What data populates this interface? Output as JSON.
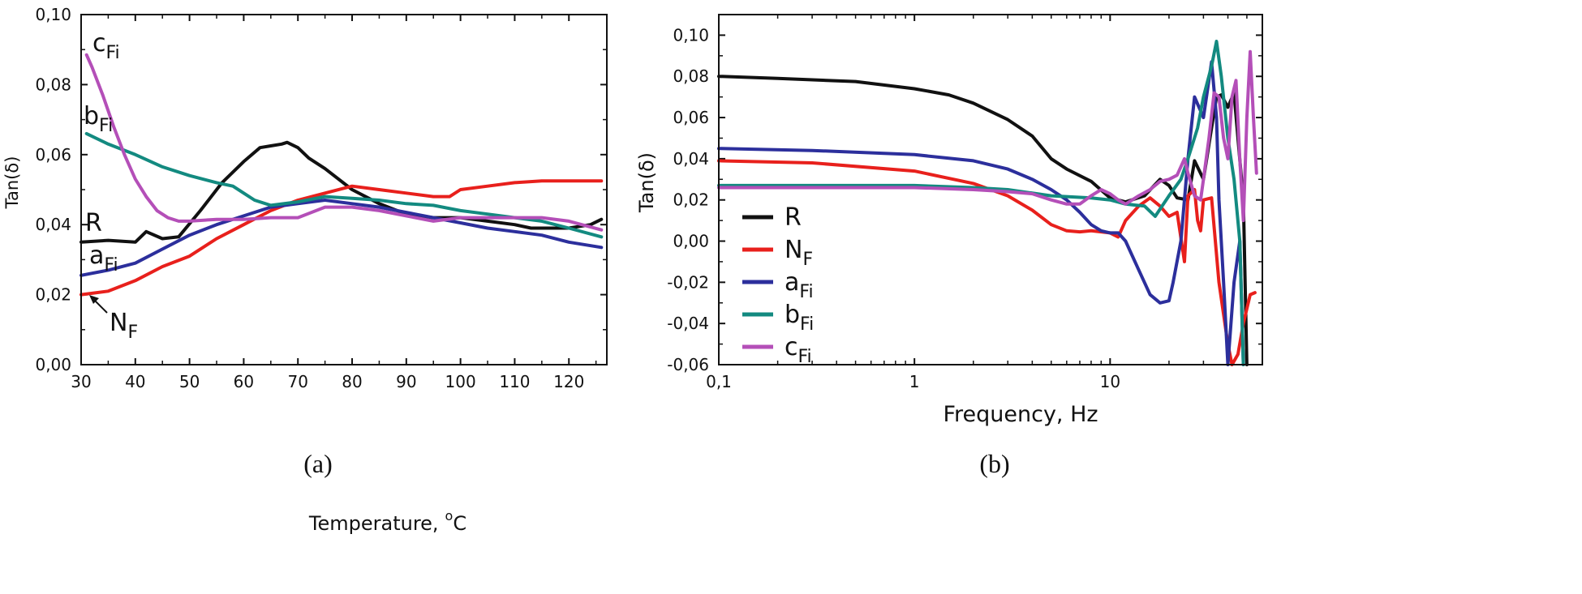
{
  "chart_data": [
    {
      "type": "line",
      "panel": "a",
      "caption": "(a)",
      "xlabel": "Temperature,",
      "xlabel_unit": "C",
      "xlabel_unit_sup": "o",
      "ylabel": "Tan(δ)",
      "xlim": [
        30,
        127
      ],
      "ylim": [
        0,
        0.1
      ],
      "xticks": [
        30,
        40,
        50,
        60,
        70,
        80,
        90,
        100,
        110,
        120
      ],
      "xtick_labels": [
        "30",
        "40",
        "50",
        "60",
        "70",
        "80",
        "90",
        "100",
        "110",
        "120"
      ],
      "yticks": [
        0,
        0.02,
        0.04,
        0.06,
        0.08,
        0.1
      ],
      "ytick_labels": [
        "0,00",
        "0,02",
        "0,04",
        "0,06",
        "0,08",
        "0,10"
      ],
      "series": [
        {
          "name": "R",
          "color": "#111111",
          "x": [
            30,
            35,
            40,
            42,
            45,
            48,
            52,
            56,
            60,
            63,
            65,
            67,
            68,
            70,
            72,
            75,
            80,
            85,
            90,
            95,
            100,
            105,
            110,
            113,
            115,
            120,
            124,
            126
          ],
          "y": [
            0.035,
            0.0355,
            0.035,
            0.038,
            0.036,
            0.0365,
            0.044,
            0.052,
            0.058,
            0.062,
            0.0625,
            0.063,
            0.0635,
            0.062,
            0.059,
            0.056,
            0.05,
            0.046,
            0.043,
            0.042,
            0.042,
            0.041,
            0.04,
            0.039,
            0.039,
            0.039,
            0.04,
            0.0415
          ]
        },
        {
          "name": "NF",
          "color": "#e8201c",
          "x": [
            30,
            35,
            40,
            45,
            50,
            55,
            60,
            65,
            70,
            75,
            80,
            85,
            90,
            95,
            98,
            100,
            105,
            110,
            115,
            120,
            126
          ],
          "y": [
            0.02,
            0.021,
            0.024,
            0.028,
            0.031,
            0.036,
            0.04,
            0.044,
            0.047,
            0.049,
            0.051,
            0.05,
            0.049,
            0.048,
            0.048,
            0.05,
            0.051,
            0.052,
            0.0525,
            0.0525,
            0.0525
          ]
        },
        {
          "name": "aFi",
          "color": "#2c2f9c",
          "x": [
            30,
            35,
            40,
            45,
            50,
            55,
            60,
            65,
            70,
            75,
            80,
            85,
            90,
            95,
            100,
            105,
            110,
            115,
            120,
            126
          ],
          "y": [
            0.0255,
            0.027,
            0.029,
            0.033,
            0.037,
            0.04,
            0.0425,
            0.045,
            0.046,
            0.047,
            0.046,
            0.045,
            0.0435,
            0.042,
            0.0405,
            0.039,
            0.038,
            0.037,
            0.035,
            0.0335
          ]
        },
        {
          "name": "bFi",
          "color": "#138a80",
          "x": [
            31,
            35,
            40,
            45,
            50,
            55,
            58,
            60,
            62,
            65,
            70,
            75,
            80,
            85,
            90,
            95,
            100,
            105,
            110,
            115,
            120,
            126
          ],
          "y": [
            0.066,
            0.063,
            0.06,
            0.0565,
            0.054,
            0.052,
            0.051,
            0.049,
            0.047,
            0.0455,
            0.0465,
            0.048,
            0.0475,
            0.047,
            0.046,
            0.0455,
            0.044,
            0.043,
            0.042,
            0.041,
            0.039,
            0.0365
          ]
        },
        {
          "name": "cFi",
          "color": "#b44fb8",
          "x": [
            31,
            32,
            34,
            36,
            38,
            40,
            42,
            44,
            46,
            48,
            50,
            55,
            60,
            65,
            70,
            75,
            80,
            85,
            90,
            95,
            100,
            105,
            110,
            115,
            120,
            126
          ],
          "y": [
            0.0885,
            0.085,
            0.077,
            0.068,
            0.06,
            0.053,
            0.048,
            0.044,
            0.042,
            0.041,
            0.041,
            0.0415,
            0.0415,
            0.042,
            0.042,
            0.045,
            0.045,
            0.044,
            0.0425,
            0.041,
            0.042,
            0.042,
            0.042,
            0.042,
            0.041,
            0.0385
          ]
        }
      ],
      "annotations": [
        {
          "series": "cFi",
          "base": "c",
          "sub": "Fi"
        },
        {
          "series": "bFi",
          "base": "b",
          "sub": "Fi"
        },
        {
          "series": "R",
          "base": "R",
          "sub": ""
        },
        {
          "series": "aFi",
          "base": "a",
          "sub": "Fi"
        },
        {
          "series": "NF",
          "base": "N",
          "sub": "F"
        }
      ]
    },
    {
      "type": "line",
      "panel": "b",
      "caption": "(b)",
      "xlabel": "Frequency, Hz",
      "ylabel": "Tan(δ)",
      "xscale": "log",
      "xlim": [
        0.1,
        60
      ],
      "ylim": [
        -0.06,
        0.11
      ],
      "xticks": [
        0.1,
        1,
        10
      ],
      "xtick_labels": [
        "0,1",
        "1",
        "10"
      ],
      "yticks": [
        -0.06,
        -0.04,
        -0.02,
        0,
        0.02,
        0.04,
        0.06,
        0.08,
        0.1
      ],
      "ytick_labels": [
        "-0,06",
        "-0,04",
        "-0,02",
        "0,00",
        "0,02",
        "0,04",
        "0,06",
        "0,08",
        "0,10"
      ],
      "legend_position": "bottom-left",
      "series": [
        {
          "name": "R",
          "color": "#111111",
          "legend_base": "R",
          "legend_sub": "",
          "x": [
            0.1,
            0.2,
            0.5,
            1,
            1.5,
            2,
            3,
            4,
            5,
            6,
            8,
            10,
            12,
            15,
            18,
            20,
            22,
            25,
            27,
            30,
            33,
            35,
            37,
            40,
            43,
            45,
            48,
            50
          ],
          "y": [
            0.08,
            0.079,
            0.0775,
            0.074,
            0.071,
            0.067,
            0.059,
            0.051,
            0.04,
            0.035,
            0.029,
            0.021,
            0.019,
            0.022,
            0.03,
            0.027,
            0.021,
            0.02,
            0.039,
            0.03,
            0.055,
            0.07,
            0.071,
            0.065,
            0.072,
            0.05,
            0.02,
            -0.06
          ]
        },
        {
          "name": "NF",
          "color": "#e8201c",
          "legend_base": "N",
          "legend_sub": "F",
          "x": [
            0.1,
            0.3,
            1,
            2,
            3,
            4,
            5,
            6,
            7,
            8,
            10,
            11,
            12,
            14,
            16,
            18,
            20,
            22,
            24,
            25,
            27,
            28,
            29,
            30,
            33,
            36,
            40,
            42,
            45,
            48,
            52,
            55
          ],
          "y": [
            0.039,
            0.038,
            0.034,
            0.028,
            0.022,
            0.015,
            0.008,
            0.005,
            0.0045,
            0.005,
            0.004,
            0.002,
            0.01,
            0.017,
            0.021,
            0.017,
            0.012,
            0.014,
            -0.01,
            0.022,
            0.025,
            0.01,
            0.005,
            0.02,
            0.021,
            -0.02,
            -0.05,
            -0.06,
            -0.055,
            -0.04,
            -0.026,
            -0.025
          ]
        },
        {
          "name": "aFi",
          "color": "#2c2f9c",
          "legend_base": "a",
          "legend_sub": "Fi",
          "x": [
            0.1,
            0.3,
            1,
            2,
            3,
            4,
            5,
            6,
            7,
            8,
            9,
            10,
            11,
            12,
            14,
            16,
            18,
            20,
            21,
            23,
            25,
            27,
            30,
            33,
            35,
            36,
            38,
            40,
            43,
            46,
            48
          ],
          "y": [
            0.045,
            0.044,
            0.042,
            0.039,
            0.035,
            0.03,
            0.025,
            0.02,
            0.014,
            0.008,
            0.005,
            0.004,
            0.004,
            0.0,
            -0.014,
            -0.026,
            -0.03,
            -0.029,
            -0.02,
            0.0,
            0.04,
            0.07,
            0.06,
            0.087,
            0.06,
            0.02,
            -0.02,
            -0.06,
            -0.02,
            0.0,
            -0.06
          ]
        },
        {
          "name": "bFi",
          "color": "#138a80",
          "legend_base": "b",
          "legend_sub": "Fi",
          "x": [
            0.1,
            0.5,
            1,
            2,
            3,
            5,
            8,
            10,
            12,
            15,
            17,
            20,
            23,
            25,
            28,
            30,
            33,
            35,
            37,
            40,
            43,
            46,
            48
          ],
          "y": [
            0.027,
            0.027,
            0.027,
            0.026,
            0.025,
            0.022,
            0.021,
            0.02,
            0.018,
            0.017,
            0.012,
            0.022,
            0.03,
            0.04,
            0.055,
            0.07,
            0.085,
            0.097,
            0.08,
            0.05,
            0.03,
            0.0,
            -0.06
          ]
        },
        {
          "name": "cFi",
          "color": "#b44fb8",
          "legend_base": "c",
          "legend_sub": "Fi",
          "x": [
            0.1,
            0.5,
            1,
            2,
            3,
            4,
            5,
            6,
            7,
            8,
            9,
            10,
            11,
            12,
            14,
            16,
            18,
            20,
            22,
            24,
            25,
            27,
            29,
            30,
            32,
            34,
            36,
            38,
            40,
            42,
            44,
            46,
            48,
            50,
            52,
            54,
            56
          ],
          "y": [
            0.026,
            0.026,
            0.026,
            0.025,
            0.024,
            0.023,
            0.02,
            0.018,
            0.018,
            0.022,
            0.025,
            0.023,
            0.02,
            0.018,
            0.022,
            0.025,
            0.029,
            0.03,
            0.032,
            0.04,
            0.033,
            0.022,
            0.02,
            0.03,
            0.05,
            0.072,
            0.07,
            0.05,
            0.04,
            0.07,
            0.078,
            0.04,
            0.01,
            0.06,
            0.092,
            0.06,
            0.033
          ]
        }
      ]
    }
  ]
}
